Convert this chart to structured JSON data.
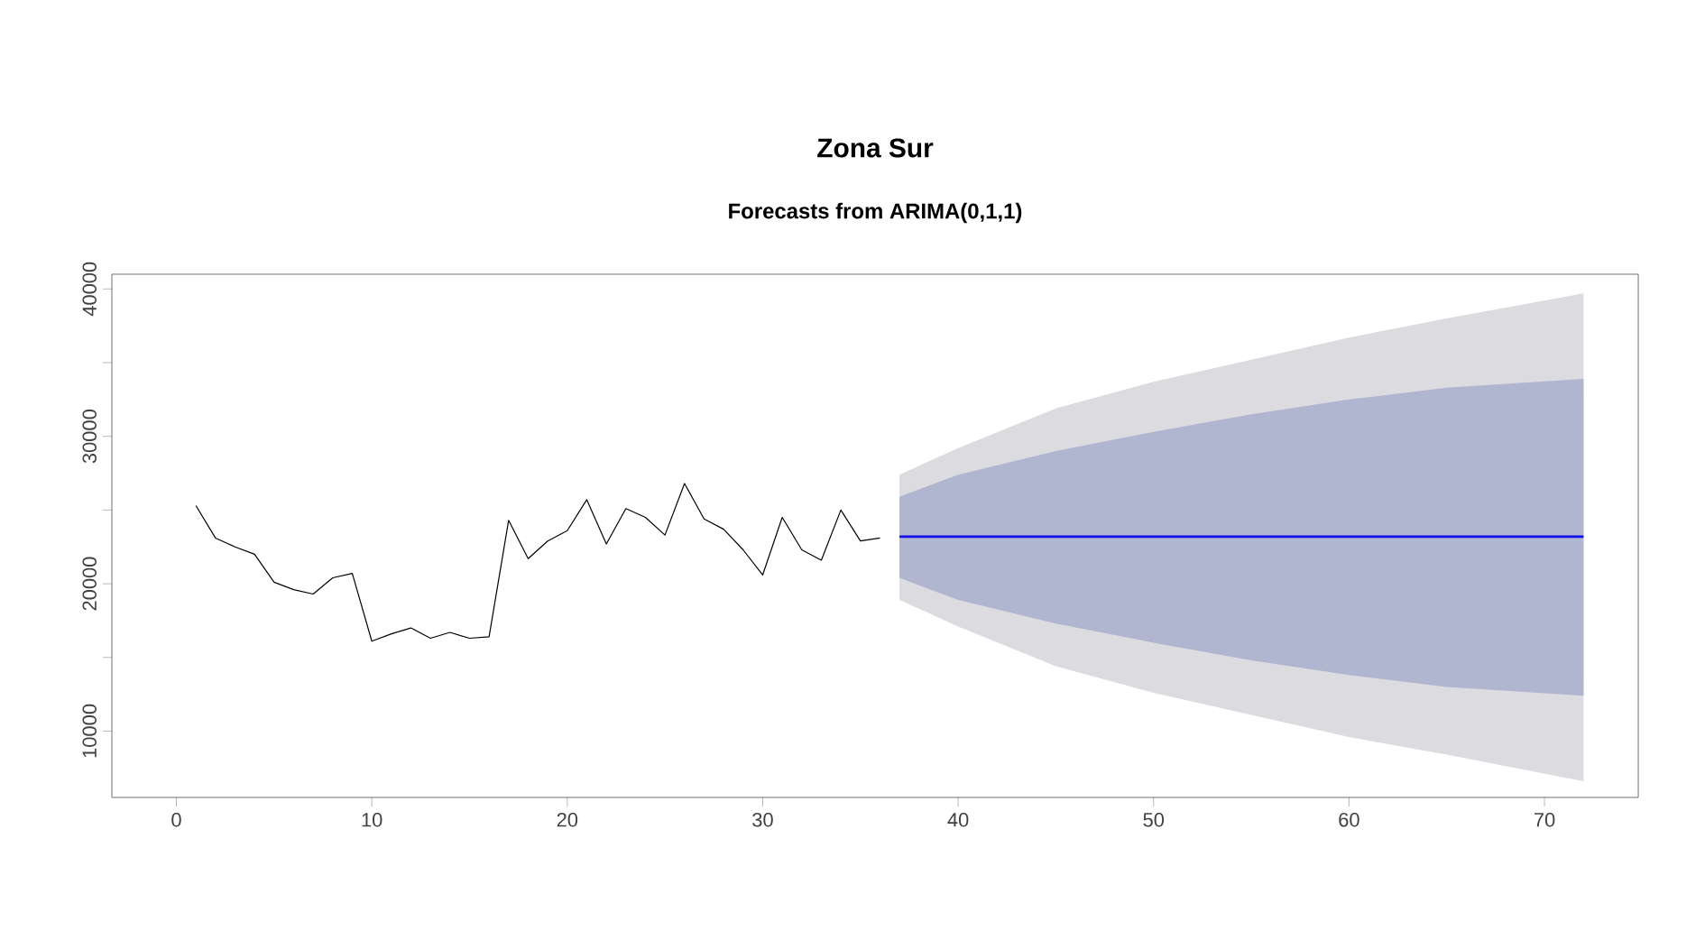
{
  "chart_data": {
    "type": "line",
    "title": "Zona Sur",
    "subtitle": "Forecasts from ARIMA(0,1,1)",
    "xlim": [
      -3.3,
      74.8
    ],
    "ylim": [
      5500,
      41000
    ],
    "xticks": [
      0,
      10,
      20,
      30,
      40,
      50,
      60,
      70
    ],
    "yticks": [
      10000,
      {
        "value": 15000,
        "label": null
      },
      20000,
      {
        "value": 25000,
        "label": null
      },
      30000,
      {
        "value": 35000,
        "label": null
      },
      40000
    ],
    "grid": false,
    "marker": "none",
    "line_style": "solid",
    "series": [
      {
        "color": "#dbdbe0",
        "x": [
          37,
          40,
          45,
          50,
          55,
          60,
          65,
          72
        ],
        "values": [
          null,
          null,
          null,
          null,
          null,
          null,
          null,
          null
        ],
        "lower": [
          18900,
          17100,
          14400,
          12600,
          11100,
          9600,
          8400,
          6600
        ],
        "upper": [
          27400,
          29200,
          31900,
          33700,
          35200,
          36700,
          38000,
          39700
        ]
      },
      {
        "color": "#b0b5d0",
        "x": [
          37,
          40,
          45,
          50,
          55,
          60,
          65,
          72
        ],
        "values": [
          null,
          null,
          null,
          null,
          null,
          null,
          null,
          null
        ],
        "lower": [
          20400,
          18900,
          17300,
          16000,
          14800,
          13800,
          13000,
          12400
        ],
        "upper": [
          25900,
          27400,
          29000,
          30300,
          31500,
          32500,
          33300,
          33900
        ]
      },
      {
        "color": "#000000",
        "x": [
          1,
          2,
          3,
          4,
          5,
          6,
          7,
          8,
          9,
          10,
          11,
          12,
          13,
          14,
          15,
          16,
          17,
          18,
          19,
          20,
          21,
          22,
          23,
          24,
          25,
          26,
          27,
          28,
          29,
          30,
          31,
          32,
          33,
          34,
          35,
          36
        ],
        "values": [
          25300,
          23100,
          22500,
          22000,
          20100,
          19600,
          19300,
          20400,
          20700,
          16100,
          16600,
          17000,
          16300,
          16700,
          16300,
          16400,
          24300,
          21700,
          22900,
          23600,
          25700,
          22700,
          25100,
          24500,
          23300,
          26800,
          24400,
          23700,
          22300,
          20600,
          24500,
          22300,
          21600,
          25000,
          22900,
          23100
        ]
      },
      {
        "color": "#1010e8",
        "x": [
          37,
          72
        ],
        "values": [
          23200,
          23200
        ]
      }
    ]
  }
}
